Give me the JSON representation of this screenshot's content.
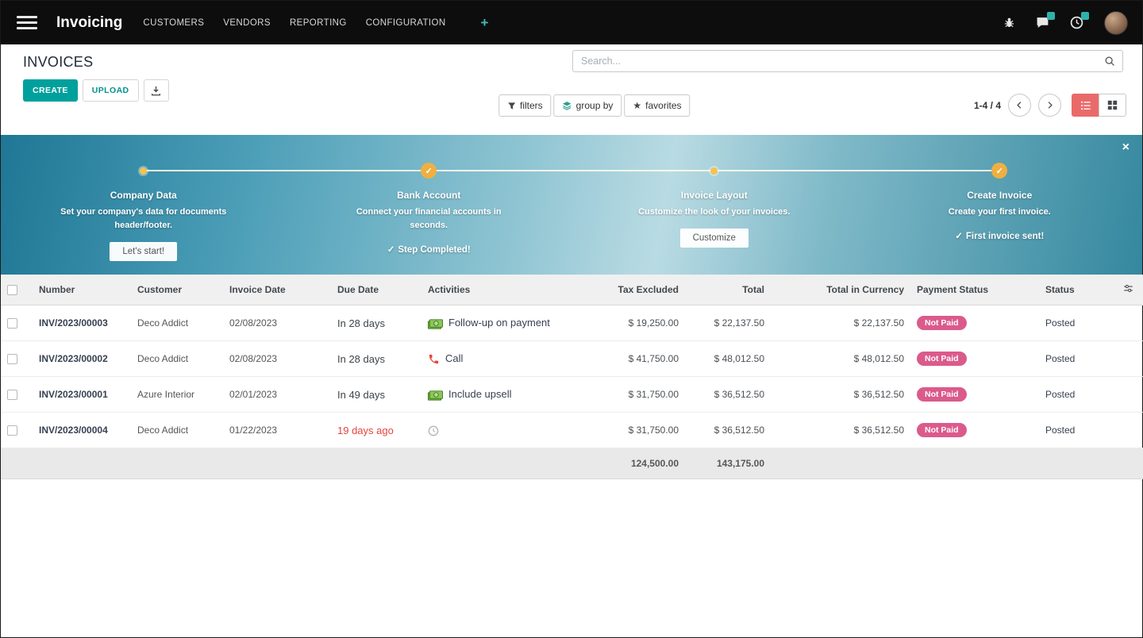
{
  "topbar": {
    "app_name": "Invoicing",
    "menus": [
      "CUSTOMERS",
      "VENDORS",
      "REPORTING",
      "CONFIGURATION"
    ],
    "plus_label": "+"
  },
  "control_panel": {
    "title": "INVOICES",
    "search": {
      "placeholder": "Search..."
    },
    "buttons": {
      "create": "CREATE",
      "upload": "UPLOAD"
    },
    "view_controls": {
      "filters": "filters",
      "group_by": "group by",
      "favorites": "favorites"
    },
    "pager": {
      "range": "1-4 / 4"
    }
  },
  "onboarding": {
    "close_label": "×",
    "steps": [
      {
        "title": "Company Data",
        "description": "Set your company's data for documents header/footer.",
        "button": "Let's start!",
        "state": "pending"
      },
      {
        "title": "Bank Account",
        "description": "Connect your financial accounts in seconds.",
        "done_label": "Step Completed!",
        "state": "done"
      },
      {
        "title": "Invoice Layout",
        "description": "Customize the look of your invoices.",
        "button": "Customize",
        "state": "pending"
      },
      {
        "title": "Create Invoice",
        "description": "Create your first invoice.",
        "done_label": "First invoice sent!",
        "state": "done"
      }
    ]
  },
  "invoice_table": {
    "headers": {
      "number": "Number",
      "customer": "Customer",
      "invoice_date": "Invoice Date",
      "due_date": "Due Date",
      "activities": "Activities",
      "tax_excluded": "Tax Excluded",
      "total": "Total",
      "total_in_currency": "Total in Currency",
      "payment_status": "Payment Status",
      "status": "Status"
    },
    "rows": [
      {
        "number": "INV/2023/00003",
        "customer": "Deco Addict",
        "invoice_date": "02/08/2023",
        "due_date": "In 28 days",
        "due_overdue": false,
        "activity_icon": "money-icon",
        "activity": "Follow-up on payment",
        "tax_excluded": "$ 19,250.00",
        "total": "$ 22,137.50",
        "total_in_currency": "$ 22,137.50",
        "payment_status": "Not Paid",
        "status": "Posted"
      },
      {
        "number": "INV/2023/00002",
        "customer": "Deco Addict",
        "invoice_date": "02/08/2023",
        "due_date": "In 28 days",
        "due_overdue": false,
        "activity_icon": "phone-icon",
        "activity": "Call",
        "tax_excluded": "$ 41,750.00",
        "total": "$ 48,012.50",
        "total_in_currency": "$ 48,012.50",
        "payment_status": "Not Paid",
        "status": "Posted"
      },
      {
        "number": "INV/2023/00001",
        "customer": "Azure Interior",
        "invoice_date": "02/01/2023",
        "due_date": "In 49 days",
        "due_overdue": false,
        "activity_icon": "money-icon",
        "activity": "Include upsell",
        "tax_excluded": "$ 31,750.00",
        "total": "$ 36,512.50",
        "total_in_currency": "$ 36,512.50",
        "payment_status": "Not Paid",
        "status": "Posted"
      },
      {
        "number": "INV/2023/00004",
        "customer": "Deco Addict",
        "invoice_date": "01/22/2023",
        "due_date": "19 days ago",
        "due_overdue": true,
        "activity_icon": "clock-icon",
        "activity": "",
        "tax_excluded": "$ 31,750.00",
        "total": "$ 36,512.50",
        "total_in_currency": "$ 36,512.50",
        "payment_status": "Not Paid",
        "status": "Posted"
      }
    ],
    "totals": {
      "tax_excluded": "124,500.00",
      "total": "143,175.00"
    }
  },
  "colors": {
    "accent_teal": "#00A09D",
    "topbar_black": "#0D0D0D",
    "active_view_pink": "#EA6A6A",
    "overdue_red": "#E5443D",
    "not_paid_badge_pink": "#DB5A8C",
    "onboarding_gold": "#EFB041",
    "banner_teal_dark": "#1E7795",
    "banner_teal_light": "#B9DBE3"
  }
}
